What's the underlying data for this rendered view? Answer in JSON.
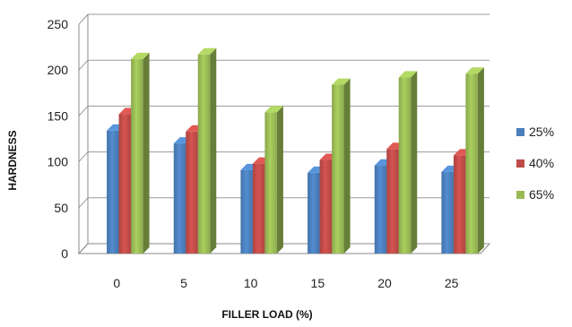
{
  "chart_data": {
    "type": "bar",
    "title": "",
    "xlabel": "FILLER LOAD (%)",
    "ylabel": "HARDNESS",
    "categories": [
      "0",
      "5",
      "10",
      "15",
      "20",
      "25"
    ],
    "ylim": [
      0,
      250
    ],
    "yticks": [
      "0",
      "50",
      "100",
      "150",
      "200",
      "250"
    ],
    "grid": true,
    "legend_position": "right",
    "series": [
      {
        "name": "25%",
        "color": "#4a7ebb",
        "values": [
          134,
          120,
          91,
          88,
          96,
          89
        ]
      },
      {
        "name": "40%",
        "color": "#be4b48",
        "values": [
          152,
          133,
          98,
          102,
          114,
          107
        ]
      },
      {
        "name": "65%",
        "color": "#98b954",
        "values": [
          212,
          217,
          154,
          184,
          192,
          196
        ]
      }
    ]
  }
}
